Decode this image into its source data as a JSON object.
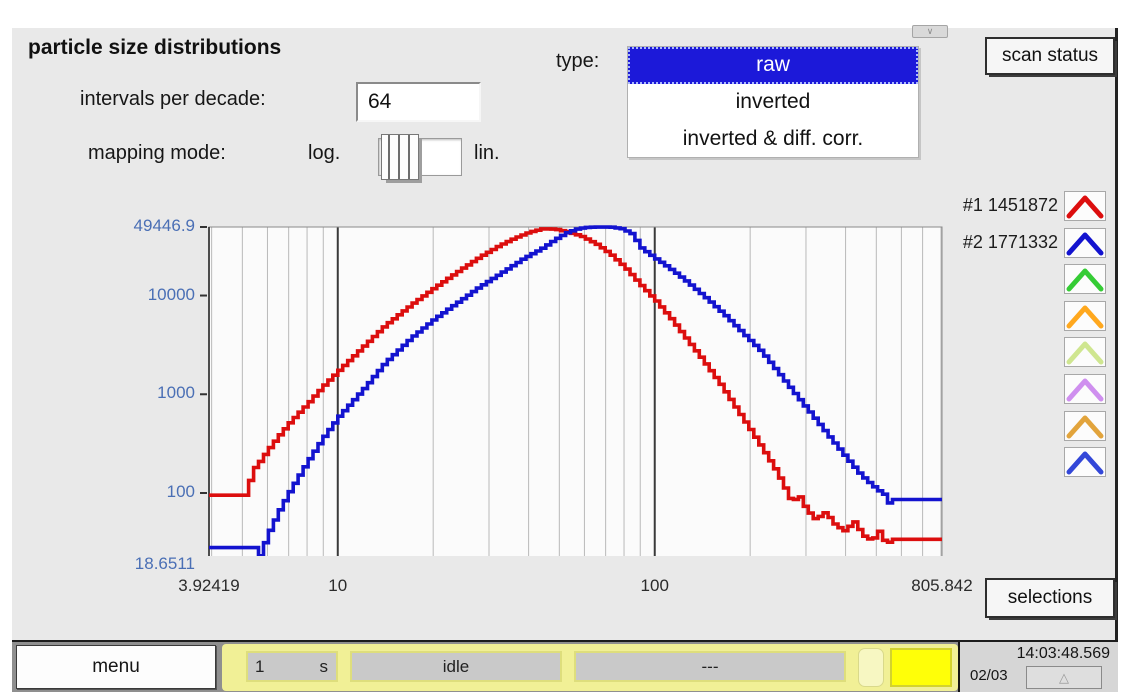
{
  "header": {
    "title": "particle size distributions",
    "type_label": "type:",
    "scan_status_button": "scan status"
  },
  "controls": {
    "intervals_label": "intervals per decade:",
    "intervals_value": "64",
    "mapping_label": "mapping mode:",
    "mapping_option_left": "log.",
    "mapping_option_right": "lin.",
    "mapping_selected": "log.",
    "scroll_stub_glyph": "∨"
  },
  "type_list": {
    "options": [
      "raw",
      "inverted",
      "inverted & diff. corr."
    ],
    "selected": "raw",
    "selected_color": "#1c19d9"
  },
  "legend": {
    "slots": [
      {
        "label": "#1 1451872",
        "color": "#dc0e0e"
      },
      {
        "label": "#2 1771332",
        "color": "#1313cf"
      },
      {
        "label": "",
        "color": "#35cc35"
      },
      {
        "label": "",
        "color": "#ffa81e"
      },
      {
        "label": "",
        "color": "#cfe690"
      },
      {
        "label": "",
        "color": "#cf8fef"
      },
      {
        "label": "",
        "color": "#e2a43c"
      },
      {
        "label": "",
        "color": "#3347d8"
      }
    ]
  },
  "chart_data": {
    "type": "line",
    "x_scale": "log",
    "y_scale": "log",
    "xlim": [
      3.92419,
      805.842
    ],
    "ylim": [
      18.6511,
      49446.9
    ],
    "x_ticks": [
      3.92419,
      10,
      100,
      805.842
    ],
    "x_tick_labels": [
      "3.92419",
      "10",
      "100",
      "805.842"
    ],
    "y_ticks": [
      49446.9,
      10000,
      1000,
      100,
      18.6511
    ],
    "y_tick_labels": [
      "49446.9",
      "10000",
      "1000",
      "100",
      "18.6511"
    ],
    "grid_minor_x": [
      4,
      5,
      6,
      7,
      8,
      9,
      20,
      30,
      40,
      50,
      60,
      70,
      80,
      90,
      200,
      300,
      400,
      500,
      600,
      700,
      800
    ],
    "grid_major_x": [
      10,
      100
    ],
    "intervals_per_decade": 64,
    "series": [
      {
        "name": "#1",
        "count": 1451872,
        "color": "#dc0e0e",
        "points": [
          [
            3.92419,
            95
          ],
          [
            5.2,
            95
          ],
          [
            5.25,
            160
          ],
          [
            5.6,
            205
          ],
          [
            6,
            280
          ],
          [
            6.5,
            390
          ],
          [
            7,
            520
          ],
          [
            8,
            820
          ],
          [
            9,
            1250
          ],
          [
            10,
            1750
          ],
          [
            12,
            3100
          ],
          [
            14,
            5000
          ],
          [
            17,
            8200
          ],
          [
            20,
            12000
          ],
          [
            24,
            18000
          ],
          [
            28,
            25000
          ],
          [
            32,
            32000
          ],
          [
            36,
            38500
          ],
          [
            40,
            44000
          ],
          [
            44,
            47500
          ],
          [
            48,
            47000
          ],
          [
            52,
            44500
          ],
          [
            58,
            40000
          ],
          [
            65,
            33000
          ],
          [
            72,
            26000
          ],
          [
            80,
            19000
          ],
          [
            90,
            12500
          ],
          [
            100,
            8800
          ],
          [
            112,
            5700
          ],
          [
            125,
            3600
          ],
          [
            140,
            2250
          ],
          [
            160,
            1250
          ],
          [
            180,
            700
          ],
          [
            200,
            420
          ],
          [
            220,
            260
          ],
          [
            240,
            165
          ],
          [
            255,
            112
          ],
          [
            268,
            80
          ],
          [
            282,
            95
          ],
          [
            298,
            68
          ],
          [
            318,
            54
          ],
          [
            342,
            64
          ],
          [
            368,
            47
          ],
          [
            395,
            41
          ],
          [
            420,
            52
          ],
          [
            450,
            37
          ],
          [
            480,
            33
          ],
          [
            508,
            42
          ],
          [
            530,
            30
          ],
          [
            558,
            34
          ],
          [
            805.842,
            34
          ]
        ]
      },
      {
        "name": "#2",
        "count": 1771332,
        "color": "#1313cf",
        "points": [
          [
            3.92419,
            28
          ],
          [
            5.45,
            28
          ],
          [
            5.5,
            19
          ],
          [
            5.62,
            23
          ],
          [
            6,
            40
          ],
          [
            6.5,
            68
          ],
          [
            7,
            105
          ],
          [
            8,
            215
          ],
          [
            9,
            380
          ],
          [
            10,
            600
          ],
          [
            12,
            1150
          ],
          [
            14,
            2100
          ],
          [
            17,
            3800
          ],
          [
            20,
            5800
          ],
          [
            24,
            8800
          ],
          [
            28,
            12500
          ],
          [
            33,
            17500
          ],
          [
            38,
            23500
          ],
          [
            44,
            30500
          ],
          [
            48,
            37000
          ],
          [
            52,
            43000
          ],
          [
            56,
            47000
          ],
          [
            60,
            49000
          ],
          [
            66,
            49400
          ],
          [
            72,
            49300
          ],
          [
            78,
            47500
          ],
          [
            84,
            42000
          ],
          [
            90,
            30000
          ],
          [
            100,
            23500
          ],
          [
            110,
            19000
          ],
          [
            125,
            13800
          ],
          [
            145,
            9200
          ],
          [
            165,
            6300
          ],
          [
            190,
            4000
          ],
          [
            215,
            2700
          ],
          [
            245,
            1600
          ],
          [
            275,
            1000
          ],
          [
            310,
            620
          ],
          [
            350,
            380
          ],
          [
            395,
            235
          ],
          [
            440,
            155
          ],
          [
            480,
            120
          ],
          [
            515,
            100
          ],
          [
            540,
            92
          ],
          [
            548,
            57
          ],
          [
            558,
            86
          ],
          [
            805.842,
            86
          ]
        ]
      }
    ]
  },
  "footer": {
    "selections_button": "selections",
    "menu_button": "menu",
    "interval_value": "1",
    "interval_unit": "s",
    "status": "idle",
    "message": "---",
    "time": "14:03:48.569",
    "date": "02/03",
    "scroll_up_glyph": "△"
  }
}
